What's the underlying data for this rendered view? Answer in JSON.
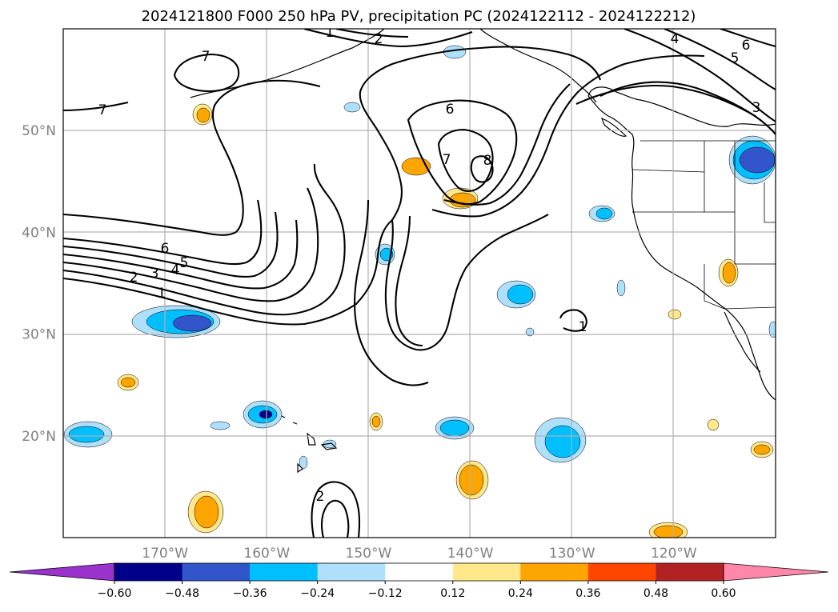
{
  "chart_data": {
    "type": "contour_map",
    "title": "2024121800 F000 250 hPa PV, precipitation PC (2024122112 - 2024122212)",
    "x_ticks": [
      "170°W",
      "160°W",
      "150°W",
      "140°W",
      "130°W",
      "120°W"
    ],
    "y_ticks": [
      "50°N",
      "40°N",
      "30°N",
      "20°N"
    ],
    "lon_range": [
      -180,
      -110
    ],
    "lat_range": [
      10,
      60
    ],
    "grid": true,
    "colorbar": {
      "orientation": "horizontal",
      "placement": "bottom",
      "extend": "both",
      "levels": [
        -0.6,
        -0.48,
        -0.36,
        -0.24,
        -0.12,
        0.12,
        0.24,
        0.36,
        0.48,
        0.6
      ],
      "tick_labels": [
        "−0.60",
        "−0.48",
        "−0.36",
        "−0.24",
        "−0.12",
        "0.12",
        "0.24",
        "0.36",
        "0.48",
        "0.60"
      ],
      "colors": [
        "#9933cc",
        "#00008b",
        "#3355cc",
        "#00bfff",
        "#aee0fb",
        "#ffffff",
        "#ffe88a",
        "#ffa500",
        "#ff4500",
        "#b22222",
        "#ff88aa"
      ]
    },
    "pv_contour_labels": [
      "7",
      "7",
      "6",
      "7",
      "8",
      "6",
      "5",
      "4",
      "3",
      "2",
      "1",
      "4",
      "5",
      "6",
      "3",
      "2",
      "1",
      "1",
      "2"
    ]
  }
}
